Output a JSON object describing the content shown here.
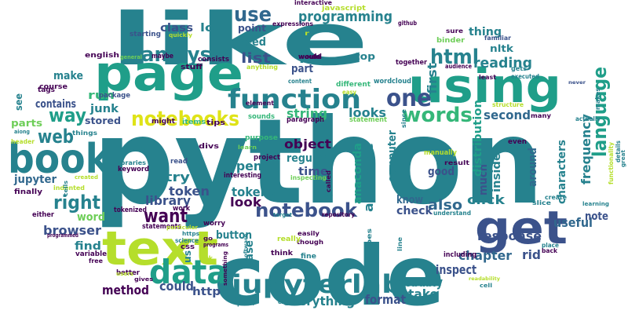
{
  "palette": {
    "deep_purple": "#440154",
    "indigo": "#3b528b",
    "slate_blue": "#31688e",
    "teal": "#26828e",
    "sea_green": "#1f9e89",
    "green": "#35b779",
    "lime": "#6ece58",
    "yellow_green": "#b5de2b",
    "yellow": "#dfe318"
  },
  "words": [
    {
      "text": "python",
      "color": "#26828e"
    },
    {
      "text": "like",
      "color": "#26828e"
    },
    {
      "text": "code",
      "color": "#26828e"
    },
    {
      "text": "page",
      "color": "#1f9e89"
    },
    {
      "text": "using",
      "color": "#1f9e89"
    },
    {
      "text": "book",
      "color": "#26828e"
    },
    {
      "text": "text",
      "color": "#b5de2b"
    },
    {
      "text": "get",
      "color": "#3b528b"
    },
    {
      "text": "data",
      "color": "#1f9e89"
    },
    {
      "text": "function",
      "color": "#26828e"
    },
    {
      "text": "jupyterlab",
      "color": "#26828e"
    },
    {
      "text": "analysis",
      "color": "#26828e"
    },
    {
      "text": "notebooks",
      "color": "#dfe318"
    },
    {
      "text": "one",
      "color": "#3b528b"
    },
    {
      "text": "words",
      "color": "#35b779"
    },
    {
      "text": "html",
      "color": "#26828e"
    },
    {
      "text": "use",
      "color": "#31688e"
    },
    {
      "text": "language",
      "color": "#1f9e89"
    },
    {
      "text": "notebook",
      "color": "#3b528b"
    },
    {
      "text": "right",
      "color": "#26828e"
    },
    {
      "text": "want",
      "color": "#440154"
    },
    {
      "text": "web",
      "color": "#26828e"
    },
    {
      "text": "way",
      "color": "#1f9e89"
    },
    {
      "text": "programming",
      "color": "#26828e"
    },
    {
      "text": "list",
      "color": "#3b528b"
    },
    {
      "text": "also",
      "color": "#31688e"
    },
    {
      "text": "frequency",
      "color": "#26828e"
    },
    {
      "text": "reading",
      "color": "#26828e"
    },
    {
      "text": "first",
      "color": "#26828e"
    },
    {
      "text": "response",
      "color": "#3b528b"
    },
    {
      "text": "object",
      "color": "#440154"
    },
    {
      "text": "looks",
      "color": "#26828e"
    },
    {
      "text": "second",
      "color": "#31688e"
    },
    {
      "text": "chapter",
      "color": "#31688e"
    },
    {
      "text": "string",
      "color": "#35b779"
    },
    {
      "text": "token",
      "color": "#3b528b"
    },
    {
      "text": "tokens",
      "color": "#26828e"
    },
    {
      "text": "open",
      "color": "#26828e"
    },
    {
      "text": "attribute",
      "color": "#26828e"
    },
    {
      "text": "click",
      "color": "#26828e"
    },
    {
      "text": "look",
      "color": "#440154"
    },
    {
      "text": "library",
      "color": "#3b528b"
    },
    {
      "text": "try",
      "color": "#26828e"
    },
    {
      "text": "everything",
      "color": "#26828e"
    },
    {
      "text": "probably",
      "color": "#26828e"
    },
    {
      "text": "take",
      "color": "#26828e"
    },
    {
      "text": "format",
      "color": "#3b528b"
    },
    {
      "text": "inspect",
      "color": "#3b528b"
    },
    {
      "text": "could",
      "color": "#3b528b"
    },
    {
      "text": "method",
      "color": "#440154"
    },
    {
      "text": "http",
      "color": "#3b528b"
    },
    {
      "text": "useful",
      "color": "#31688e"
    },
    {
      "text": "note",
      "color": "#3b528b"
    },
    {
      "text": "rid",
      "color": "#3b528b"
    },
    {
      "text": "browser",
      "color": "#3b528b"
    },
    {
      "text": "button",
      "color": "#26828e"
    },
    {
      "text": "jupyter",
      "color": "#31688e"
    },
    {
      "text": "check",
      "color": "#3b528b"
    },
    {
      "text": "time",
      "color": "#3b528b"
    },
    {
      "text": "regular",
      "color": "#26828e"
    },
    {
      "text": "good",
      "color": "#3b528b"
    },
    {
      "text": "know",
      "color": "#31688e"
    },
    {
      "text": "case",
      "color": "#26828e"
    },
    {
      "text": "much",
      "color": "#3b528b"
    },
    {
      "text": "computer",
      "color": "#26828e"
    },
    {
      "text": "anaconda",
      "color": "#1f9e89"
    },
    {
      "text": "distribution",
      "color": "#1f9e89"
    },
    {
      "text": "inside",
      "color": "#26828e"
    },
    {
      "text": "around",
      "color": "#31688e"
    },
    {
      "text": "characters",
      "color": "#26828e"
    },
    {
      "text": "let",
      "color": "#26828e"
    },
    {
      "text": "need",
      "color": "#26828e"
    },
    {
      "text": "point",
      "color": "#3b528b"
    },
    {
      "text": "part",
      "color": "#3b528b"
    },
    {
      "text": "thing",
      "color": "#26828e"
    },
    {
      "text": "nltk",
      "color": "#26828e"
    },
    {
      "text": "top",
      "color": "#26828e"
    },
    {
      "text": "class",
      "color": "#3b528b"
    },
    {
      "text": "lot",
      "color": "#26828e"
    },
    {
      "text": "make",
      "color": "#26828e"
    },
    {
      "text": "contains",
      "color": "#3b528b"
    },
    {
      "text": "parts",
      "color": "#6ece58"
    },
    {
      "text": "see",
      "color": "#26828e"
    },
    {
      "text": "junk",
      "color": "#26828e"
    },
    {
      "text": "stored",
      "color": "#3b528b"
    },
    {
      "text": "run",
      "color": "#35b779"
    },
    {
      "text": "find",
      "color": "#26828e"
    },
    {
      "text": "word",
      "color": "#6ece58"
    },
    {
      "text": "us",
      "color": "#26828e"
    },
    {
      "text": "would",
      "color": "#440154"
    },
    {
      "text": "javascript",
      "color": "#b5de2b"
    },
    {
      "text": "interactive",
      "color": "#440154"
    },
    {
      "text": "expressions",
      "color": "#440154"
    },
    {
      "text": "github",
      "color": "#440154"
    },
    {
      "text": "binder",
      "color": "#6ece58"
    },
    {
      "text": "familiar",
      "color": "#3b528b"
    },
    {
      "text": "gets",
      "color": "#26828e"
    },
    {
      "text": "executed",
      "color": "#26828e"
    },
    {
      "text": "audience",
      "color": "#440154"
    },
    {
      "text": "never",
      "color": "#3b528b"
    },
    {
      "text": "starting",
      "color": "#3b528b"
    },
    {
      "text": "quickly",
      "color": "#b5de2b"
    },
    {
      "text": "english",
      "color": "#440154"
    },
    {
      "text": "general",
      "color": "#6ece58"
    },
    {
      "text": "maybe",
      "color": "#440154"
    },
    {
      "text": "consists",
      "color": "#440154"
    },
    {
      "text": "stuff",
      "color": "#440154"
    },
    {
      "text": "anything",
      "color": "#b5de2b"
    },
    {
      "text": "content",
      "color": "#26828e"
    },
    {
      "text": "together",
      "color": "#440154"
    },
    {
      "text": "sure",
      "color": "#440154"
    },
    {
      "text": "course",
      "color": "#440154"
    },
    {
      "text": "tags",
      "color": "#440154"
    },
    {
      "text": "package",
      "color": "#3b528b"
    },
    {
      "text": "wordcloud",
      "color": "#26828e"
    },
    {
      "text": "different",
      "color": "#35b779"
    },
    {
      "text": "easy",
      "color": "#b5de2b"
    },
    {
      "text": "least",
      "color": "#440154"
    },
    {
      "text": "actually",
      "color": "#26828e"
    },
    {
      "text": "structure",
      "color": "#b5de2b"
    },
    {
      "text": "many",
      "color": "#440154"
    },
    {
      "text": "makes",
      "color": "#26828e"
    },
    {
      "text": "functionality",
      "color": "#b5de2b"
    },
    {
      "text": "details",
      "color": "#26828e"
    },
    {
      "text": "great",
      "color": "#26828e"
    },
    {
      "text": "purpose",
      "color": "#35b779"
    },
    {
      "text": "paragraph",
      "color": "#440154"
    },
    {
      "text": "statement",
      "color": "#6ece58"
    },
    {
      "text": "element",
      "color": "#440154"
    },
    {
      "text": "sounds",
      "color": "#35b779"
    },
    {
      "text": "tips",
      "color": "#440154"
    },
    {
      "text": "divs",
      "color": "#440154"
    },
    {
      "text": "items",
      "color": "#35b779"
    },
    {
      "text": "might",
      "color": "#440154"
    },
    {
      "text": "learn",
      "color": "#6ece58"
    },
    {
      "text": "project",
      "color": "#440154"
    },
    {
      "text": "interesting",
      "color": "#440154"
    },
    {
      "text": "inspecting",
      "color": "#6ece58"
    },
    {
      "text": "called",
      "color": "#440154"
    },
    {
      "text": "result",
      "color": "#440154"
    },
    {
      "text": "since",
      "color": "#26828e"
    },
    {
      "text": "manually",
      "color": "#b5de2b"
    },
    {
      "text": "even",
      "color": "#440154"
    },
    {
      "text": "aiong",
      "color": "#26828e"
    },
    {
      "text": "header",
      "color": "#b5de2b"
    },
    {
      "text": "things",
      "color": "#26828e"
    },
    {
      "text": "credit",
      "color": "#26828e"
    },
    {
      "text": "libraries",
      "color": "#26828e"
    },
    {
      "text": "keyword",
      "color": "#440154"
    },
    {
      "text": "read",
      "color": "#3b528b"
    },
    {
      "text": "created",
      "color": "#b5de2b"
    },
    {
      "text": "indented",
      "color": "#b5de2b"
    },
    {
      "text": "finally",
      "color": "#440154"
    },
    {
      "text": "cells",
      "color": "#26828e"
    },
    {
      "text": "tokenized",
      "color": "#440154"
    },
    {
      "text": "work",
      "color": "#440154"
    },
    {
      "text": "worry",
      "color": "#440154"
    },
    {
      "text": "simple",
      "color": "#26828e"
    },
    {
      "text": "target",
      "color": "#26828e"
    },
    {
      "text": "repository",
      "color": "#440154"
    },
    {
      "text": "understand",
      "color": "#26828e"
    },
    {
      "text": "slice",
      "color": "#26828e"
    },
    {
      "text": "create",
      "color": "#26828e"
    },
    {
      "text": "learning",
      "color": "#26828e"
    },
    {
      "text": "either",
      "color": "#440154"
    },
    {
      "text": "statements",
      "color": "#440154"
    },
    {
      "text": "particular",
      "color": "#b5de2b"
    },
    {
      "text": "science",
      "color": "#26828e"
    },
    {
      "text": "easily",
      "color": "#440154"
    },
    {
      "text": "though",
      "color": "#440154"
    },
    {
      "text": "types",
      "color": "#26828e"
    },
    {
      "text": "line",
      "color": "#26828e"
    },
    {
      "text": "place",
      "color": "#26828e"
    },
    {
      "text": "back",
      "color": "#440154"
    },
    {
      "text": "programmed",
      "color": "#440154"
    },
    {
      "text": "variable",
      "color": "#440154"
    },
    {
      "text": "css",
      "color": "#440154"
    },
    {
      "text": "ink",
      "color": "#b5de2b"
    },
    {
      "text": "https",
      "color": "#26828e"
    },
    {
      "text": "programs",
      "color": "#440154"
    },
    {
      "text": "go",
      "color": "#440154"
    },
    {
      "text": "software",
      "color": "#26828e"
    },
    {
      "text": "really",
      "color": "#b5de2b"
    },
    {
      "text": "think",
      "color": "#440154"
    },
    {
      "text": "fine",
      "color": "#26828e"
    },
    {
      "text": "including",
      "color": "#440154"
    },
    {
      "text": "free",
      "color": "#440154"
    },
    {
      "text": "better",
      "color": "#440154"
    },
    {
      "text": "something",
      "color": "#440154"
    },
    {
      "text": "users",
      "color": "#b5de2b"
    },
    {
      "text": "gives",
      "color": "#440154"
    },
    {
      "text": "plain",
      "color": "#26828e"
    },
    {
      "text": "existing",
      "color": "#26828e"
    },
    {
      "text": "readability",
      "color": "#b5de2b"
    },
    {
      "text": "cell",
      "color": "#26828e"
    },
    {
      "text": "r",
      "color": "#b5de2b"
    },
    {
      "text": "would",
      "color": "#440154"
    }
  ]
}
